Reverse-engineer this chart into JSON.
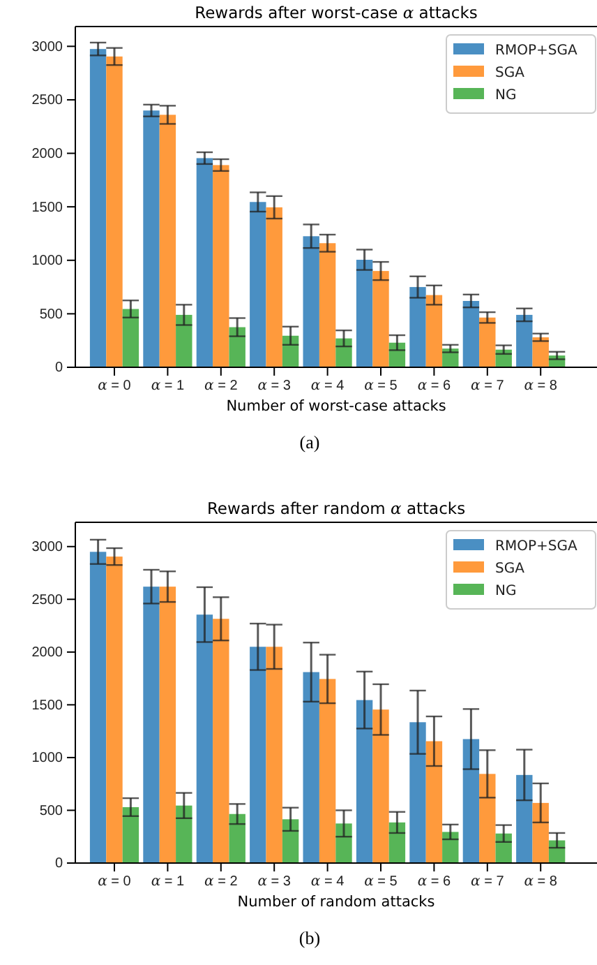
{
  "chart_data": [
    {
      "type": "bar",
      "title": "Rewards after worst-case α attacks",
      "xlabel": "Number of worst-case attacks",
      "categories": [
        "α = 0",
        "α = 1",
        "α = 2",
        "α = 3",
        "α = 4",
        "α = 5",
        "α = 6",
        "α = 7",
        "α = 8"
      ],
      "series": [
        {
          "name": "RMOP+SGA",
          "color": "#4a8fc3",
          "values": [
            2975,
            2400,
            1955,
            1545,
            1225,
            1005,
            750,
            620,
            490
          ],
          "errors": [
            60,
            55,
            55,
            90,
            110,
            95,
            100,
            60,
            60
          ]
        },
        {
          "name": "SGA",
          "color": "#ff9a3c",
          "values": [
            2905,
            2360,
            1890,
            1495,
            1160,
            900,
            675,
            465,
            280
          ],
          "errors": [
            80,
            85,
            55,
            105,
            80,
            85,
            90,
            50,
            35
          ]
        },
        {
          "name": "NG",
          "color": "#57b557",
          "values": [
            545,
            490,
            375,
            295,
            270,
            230,
            175,
            165,
            110
          ],
          "errors": [
            80,
            95,
            85,
            85,
            75,
            70,
            35,
            40,
            35
          ]
        }
      ],
      "ylim": [
        0,
        3185
      ],
      "yticks": [
        0,
        500,
        1000,
        1500,
        2000,
        2500,
        3000
      ],
      "legend": "top right",
      "annotations": [
        "(a)"
      ]
    },
    {
      "type": "bar",
      "title": "Rewards after random α attacks",
      "xlabel": "Number of random attacks",
      "categories": [
        "α = 0",
        "α = 1",
        "α = 2",
        "α = 3",
        "α = 4",
        "α = 5",
        "α = 6",
        "α = 7",
        "α = 8"
      ],
      "series": [
        {
          "name": "RMOP+SGA",
          "color": "#4a8fc3",
          "values": [
            2950,
            2620,
            2355,
            2050,
            1810,
            1545,
            1335,
            1175,
            835
          ],
          "errors": [
            115,
            160,
            260,
            220,
            280,
            270,
            300,
            285,
            240
          ]
        },
        {
          "name": "SGA",
          "color": "#ff9a3c",
          "values": [
            2905,
            2620,
            2315,
            2050,
            1745,
            1455,
            1155,
            845,
            570
          ],
          "errors": [
            80,
            145,
            205,
            210,
            230,
            240,
            235,
            225,
            185
          ]
        },
        {
          "name": "NG",
          "color": "#57b557",
          "values": [
            530,
            545,
            465,
            415,
            375,
            385,
            295,
            280,
            215
          ],
          "errors": [
            85,
            120,
            95,
            110,
            125,
            100,
            70,
            80,
            70
          ]
        }
      ],
      "ylim": [
        0,
        3230
      ],
      "yticks": [
        0,
        500,
        1000,
        1500,
        2000,
        2500,
        3000
      ],
      "legend": "top right",
      "annotations": [
        "(b)"
      ]
    }
  ]
}
